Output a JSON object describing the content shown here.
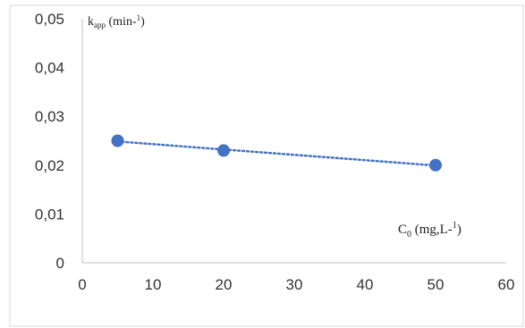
{
  "chart_data": {
    "type": "scatter",
    "title": "",
    "x": [
      5,
      20,
      50
    ],
    "series": [
      {
        "values": [
          0.025,
          0.023,
          0.02
        ],
        "color": "#4472C4",
        "trendline": "linear",
        "trendline_style": "dotted"
      }
    ],
    "xlim": [
      0,
      60
    ],
    "ylim": [
      0,
      0.05
    ],
    "x_ticks": [
      "0",
      "10",
      "20",
      "30",
      "40",
      "50",
      "60"
    ],
    "y_ticks": [
      "0",
      "0,01",
      "0,02",
      "0,03",
      "0,04",
      "0,05"
    ],
    "x_tick_values": [
      0,
      10,
      20,
      30,
      40,
      50,
      60
    ],
    "y_tick_values": [
      0,
      0.01,
      0.02,
      0.03,
      0.04,
      0.05
    ],
    "grid": false,
    "legend": "none",
    "ylabel": {
      "base": "k",
      "sub": "app",
      "rest": " (min-",
      "sup": "1",
      "end": ")"
    },
    "xlabel": {
      "base": "C",
      "sub": "0",
      "rest": " (mg,L-",
      "sup": "1",
      "end": ")"
    }
  }
}
